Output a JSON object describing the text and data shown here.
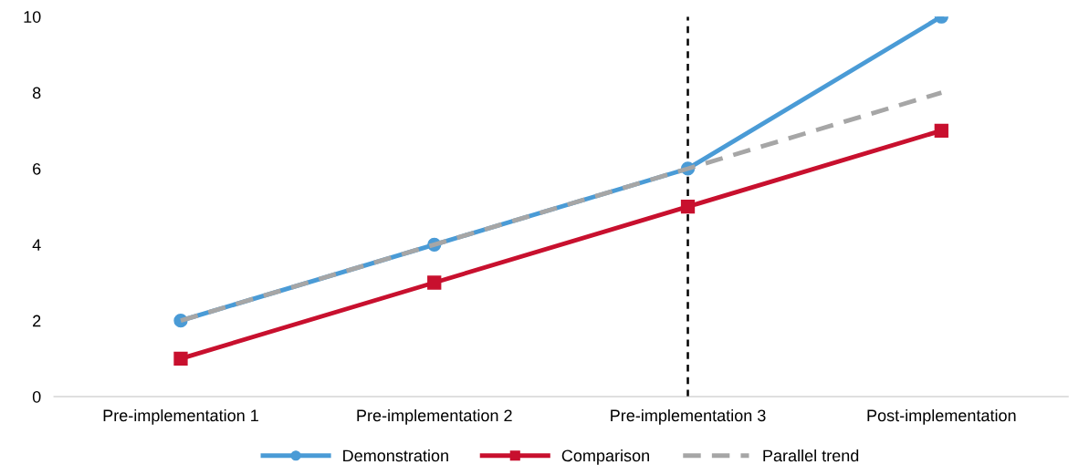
{
  "chart_data": {
    "type": "line",
    "categories": [
      "Pre-implementation 1",
      "Pre-implementation 2",
      "Pre-implementation 3",
      "Post-implementation"
    ],
    "series": [
      {
        "name": "Demonstration",
        "color": "#4a9bd6",
        "values": [
          2,
          4,
          6,
          10
        ],
        "marker": "circle",
        "line_style": "solid"
      },
      {
        "name": "Comparison",
        "color": "#c8102e",
        "values": [
          1,
          3,
          5,
          7
        ],
        "marker": "square",
        "line_style": "solid"
      },
      {
        "name": "Parallel trend",
        "color": "#a6a6a6",
        "values": [
          2,
          4,
          6,
          8
        ],
        "marker": "none",
        "line_style": "dashed"
      }
    ],
    "ylim": [
      0,
      10
    ],
    "yticks": [
      0,
      2,
      4,
      6,
      8,
      10
    ],
    "ref_lines": [
      {
        "axis": "x",
        "value": "Pre-implementation 3",
        "color": "#000000",
        "line_style": "dashed"
      }
    ],
    "grid": false,
    "legend": "bottom"
  }
}
